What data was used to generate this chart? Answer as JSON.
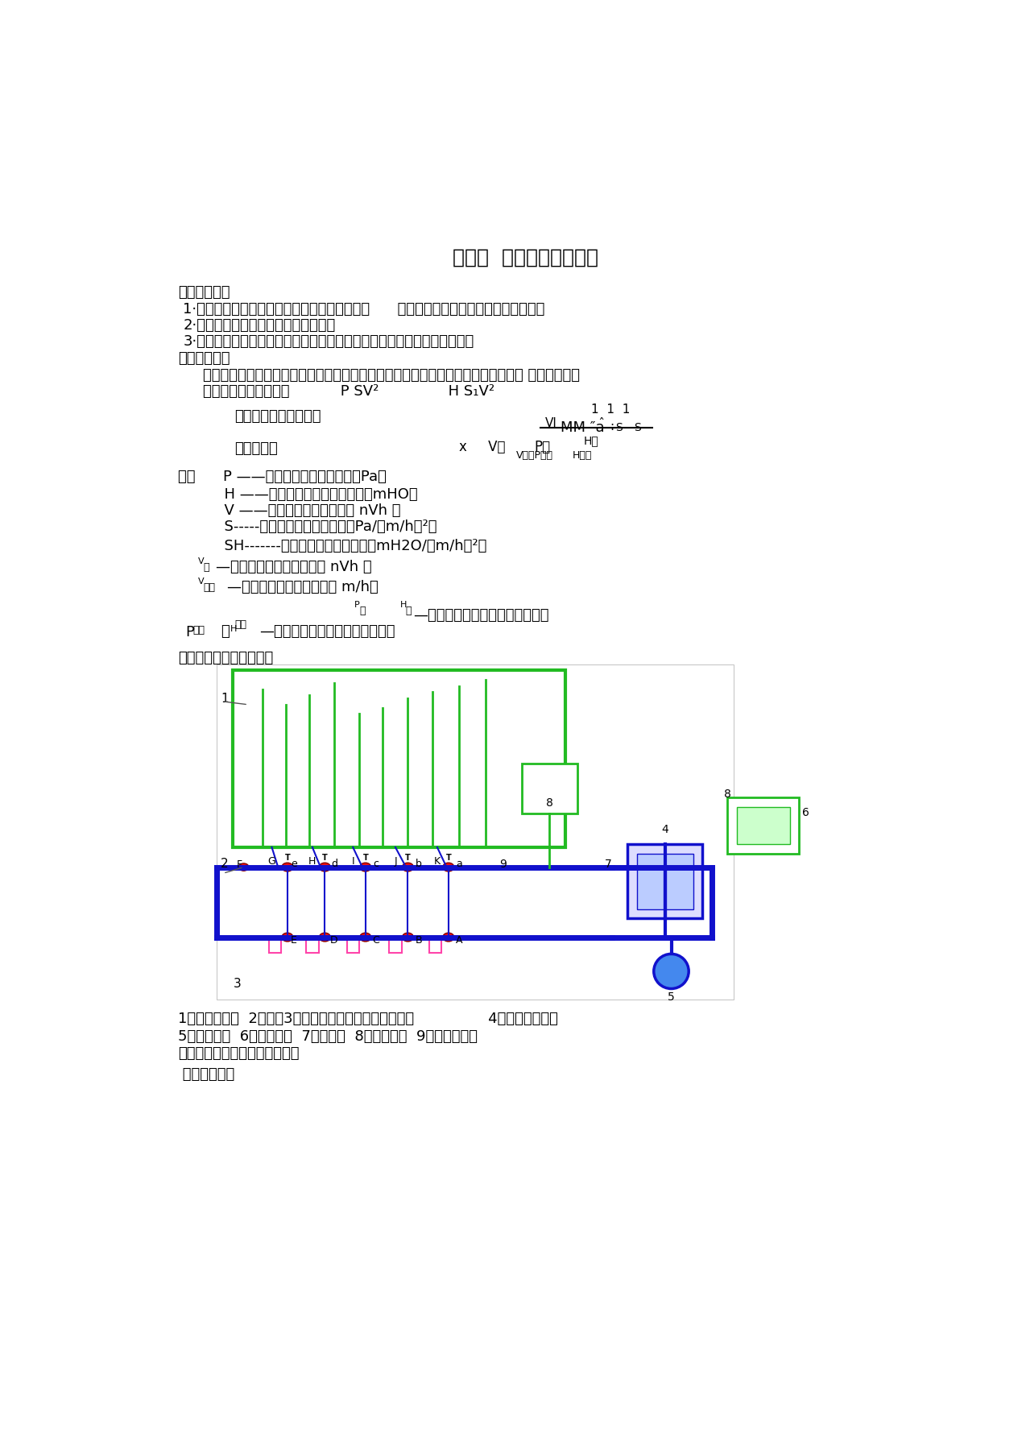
{
  "title": "实验一  热网水力工况实验",
  "bg_color": "#ffffff",
  "text_color": "#000000",
  "section1_title": "一、实验目的",
  "item1": "1·了解不同水力工况下热网水压图的变化情况，      巩固热水网路水力工况计算的基本原理",
  "item2": "2·能够绘制各种不同工况下的水压图。",
  "item3": "3·了解和掌握热网水力工况分析方法，验证热网水压图和水力工况的理论。",
  "section2_title": "二、实验原理",
  "principle_text1": "    在室外热水网路中，水的流动状态大多处于阻力平方区。流体的压力降与流量、阻抗 的关系如下：",
  "principle_text2": "    流体压降与流量的关系           P SV²               H S₁V²",
  "section3_title": "三、实验设备及实验装置",
  "caption1": "1、测压玻璃管  2、阀门3、管网（以细水管代替暖气片）                4、锅炉（模型）",
  "caption2": "5、循环水泵  6、补给水箱  7、稳压罐  8、膨胀水箱  9、转子流量计",
  "fig_caption": "图１热网水力工况实验台示意图",
  "section4_title": " 四、实验步骤"
}
